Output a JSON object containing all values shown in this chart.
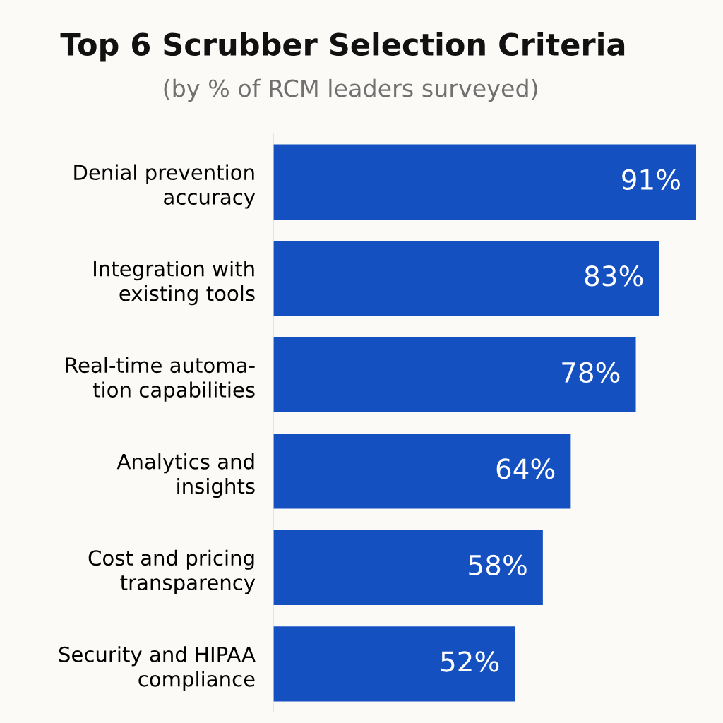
{
  "chart_data": {
    "type": "bar",
    "orientation": "horizontal",
    "title": "Top 6 Scrubber Selection Criteria",
    "subtitle": "(by % of RCM leaders surveyed)",
    "categories": [
      "Denial prevention\naccuracy",
      "Integration with\nexisting tools",
      "Real-time automa-\ntion capabilities",
      "Analytics and\ninsights",
      "Cost and pricing\ntransparency",
      "Security and HIPAA\ncompliance"
    ],
    "values": [
      91,
      83,
      78,
      64,
      58,
      52
    ],
    "value_labels": [
      "91%",
      "83%",
      "78%",
      "64%",
      "58%",
      "52%"
    ],
    "color": "#1450c0",
    "grid": false,
    "legend": false
  }
}
